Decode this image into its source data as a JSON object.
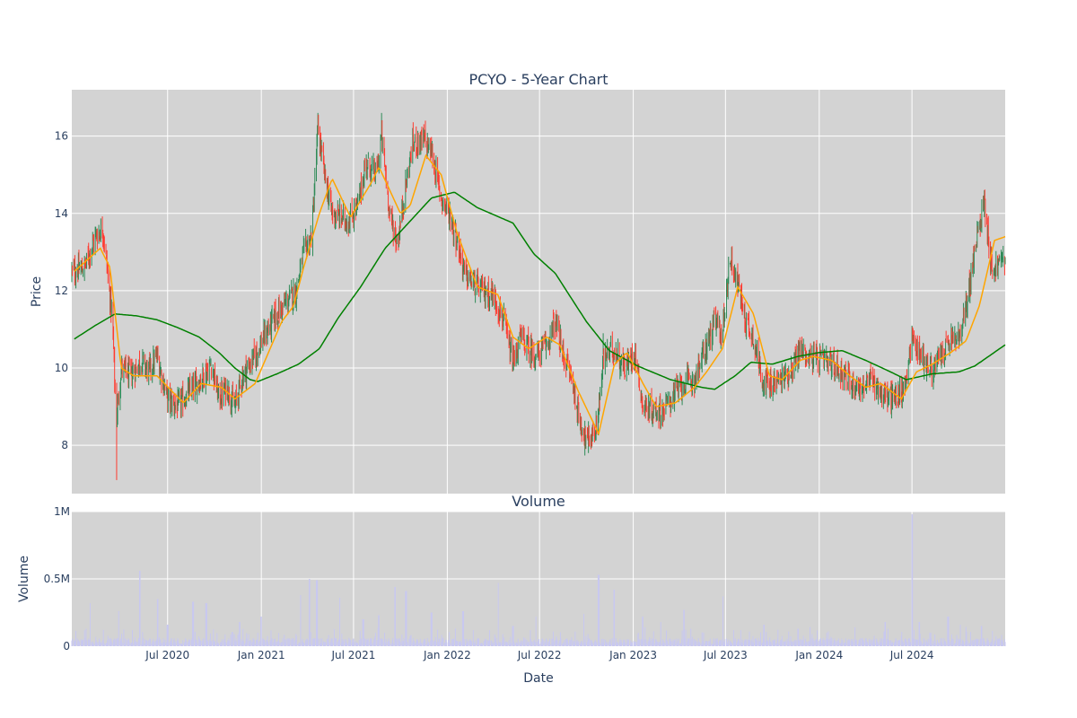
{
  "title": "PCYO - 5-Year Chart",
  "volume_title": "Volume",
  "colors": {
    "plot_bg": "#d3d3d3",
    "grid": "#ffffff",
    "candle_up": "#2e8b57",
    "candle_down": "#ff3b30",
    "ma_short": "#ffa500",
    "ma_long": "#008000",
    "volume_bar": "#c8c8f0",
    "text": "#2a3f5f"
  },
  "chart_data": [
    {
      "type": "candlestick",
      "ylabel": "Price",
      "ylim": [
        6.75,
        17.2
      ],
      "yticks": [
        8,
        10,
        12,
        14,
        16
      ],
      "grid": true,
      "xrange": [
        "2019-12-26",
        "2024-12-31"
      ],
      "series_anchors": {
        "close": [
          [
            "2019-12-31",
            12.5
          ],
          [
            "2020-01-20",
            12.6
          ],
          [
            "2020-02-10",
            13.4
          ],
          [
            "2020-02-25",
            13.6
          ],
          [
            "2020-03-05",
            12.5
          ],
          [
            "2020-03-15",
            11.2
          ],
          [
            "2020-03-22",
            8.6
          ],
          [
            "2020-04-01",
            10.0
          ],
          [
            "2020-04-20",
            9.8
          ],
          [
            "2020-05-10",
            10.2
          ],
          [
            "2020-05-25",
            9.9
          ],
          [
            "2020-06-10",
            10.3
          ],
          [
            "2020-07-01",
            9.2
          ],
          [
            "2020-07-20",
            9.0
          ],
          [
            "2020-08-15",
            9.4
          ],
          [
            "2020-09-10",
            9.8
          ],
          [
            "2020-09-25",
            10.1
          ],
          [
            "2020-10-10",
            9.2
          ],
          [
            "2020-10-25",
            9.5
          ],
          [
            "2020-11-10",
            9.0
          ],
          [
            "2020-11-25",
            9.8
          ],
          [
            "2020-12-15",
            10.2
          ],
          [
            "2021-01-10",
            10.9
          ],
          [
            "2021-02-01",
            11.4
          ],
          [
            "2021-02-20",
            11.7
          ],
          [
            "2021-03-10",
            12.0
          ],
          [
            "2021-03-25",
            13.0
          ],
          [
            "2021-04-10",
            13.4
          ],
          [
            "2021-04-22",
            16.2
          ],
          [
            "2021-05-05",
            15.0
          ],
          [
            "2021-05-20",
            14.0
          ],
          [
            "2021-06-05",
            13.9
          ],
          [
            "2021-06-20",
            13.8
          ],
          [
            "2021-07-10",
            14.2
          ],
          [
            "2021-07-25",
            15.3
          ],
          [
            "2021-08-15",
            15.0
          ],
          [
            "2021-08-25",
            16.0
          ],
          [
            "2021-09-10",
            14.0
          ],
          [
            "2021-09-25",
            13.2
          ],
          [
            "2021-10-10",
            14.6
          ],
          [
            "2021-10-25",
            15.8
          ],
          [
            "2021-11-15",
            15.9
          ],
          [
            "2021-12-01",
            15.6
          ],
          [
            "2021-12-20",
            14.4
          ],
          [
            "2022-01-05",
            14.0
          ],
          [
            "2022-01-20",
            13.3
          ],
          [
            "2022-02-05",
            12.4
          ],
          [
            "2022-02-20",
            12.2
          ],
          [
            "2022-03-10",
            12.0
          ],
          [
            "2022-04-01",
            11.9
          ],
          [
            "2022-04-20",
            11.3
          ],
          [
            "2022-05-10",
            10.1
          ],
          [
            "2022-05-25",
            10.8
          ],
          [
            "2022-06-10",
            10.5
          ],
          [
            "2022-06-25",
            10.3
          ],
          [
            "2022-07-15",
            10.6
          ],
          [
            "2022-08-01",
            11.2
          ],
          [
            "2022-08-15",
            10.4
          ],
          [
            "2022-09-01",
            9.8
          ],
          [
            "2022-09-15",
            8.8
          ],
          [
            "2022-10-01",
            8.1
          ],
          [
            "2022-10-20",
            8.4
          ],
          [
            "2022-11-05",
            10.3
          ],
          [
            "2022-11-25",
            10.5
          ],
          [
            "2022-12-15",
            10.0
          ],
          [
            "2023-01-05",
            10.4
          ],
          [
            "2023-01-20",
            9.0
          ],
          [
            "2023-02-10",
            8.9
          ],
          [
            "2023-03-01",
            8.9
          ],
          [
            "2023-03-20",
            9.3
          ],
          [
            "2023-04-10",
            9.6
          ],
          [
            "2023-05-01",
            9.7
          ],
          [
            "2023-05-20",
            10.4
          ],
          [
            "2023-06-10",
            11.2
          ],
          [
            "2023-06-25",
            10.9
          ],
          [
            "2023-07-10",
            12.9
          ],
          [
            "2023-07-25",
            12.2
          ],
          [
            "2023-08-10",
            11.2
          ],
          [
            "2023-08-25",
            10.8
          ],
          [
            "2023-09-10",
            9.8
          ],
          [
            "2023-09-25",
            9.5
          ],
          [
            "2023-10-15",
            9.7
          ],
          [
            "2023-11-05",
            9.9
          ],
          [
            "2023-11-25",
            10.5
          ],
          [
            "2023-12-10",
            10.3
          ],
          [
            "2024-01-05",
            10.2
          ],
          [
            "2024-01-25",
            10.1
          ],
          [
            "2024-02-15",
            9.9
          ],
          [
            "2024-03-05",
            9.6
          ],
          [
            "2024-03-25",
            9.5
          ],
          [
            "2024-04-15",
            9.7
          ],
          [
            "2024-05-05",
            9.3
          ],
          [
            "2024-05-25",
            9.2
          ],
          [
            "2024-06-15",
            9.4
          ],
          [
            "2024-07-01",
            10.8
          ],
          [
            "2024-07-20",
            10.3
          ],
          [
            "2024-08-10",
            9.9
          ],
          [
            "2024-08-25",
            10.3
          ],
          [
            "2024-09-15",
            10.7
          ],
          [
            "2024-10-05",
            10.8
          ],
          [
            "2024-10-20",
            12.0
          ],
          [
            "2024-11-05",
            13.3
          ],
          [
            "2024-11-20",
            14.4
          ],
          [
            "2024-12-05",
            12.5
          ],
          [
            "2024-12-31",
            12.9
          ]
        ],
        "ma_short": [
          [
            "2019-12-31",
            12.5
          ],
          [
            "2020-02-20",
            13.1
          ],
          [
            "2020-03-10",
            12.6
          ],
          [
            "2020-04-01",
            10.0
          ],
          [
            "2020-04-25",
            9.8
          ],
          [
            "2020-06-10",
            9.8
          ],
          [
            "2020-08-01",
            9.1
          ],
          [
            "2020-09-05",
            9.6
          ],
          [
            "2020-10-15",
            9.5
          ],
          [
            "2020-11-10",
            9.2
          ],
          [
            "2020-12-20",
            9.6
          ],
          [
            "2021-02-10",
            11.2
          ],
          [
            "2021-03-05",
            11.6
          ],
          [
            "2021-03-25",
            12.6
          ],
          [
            "2021-04-25",
            14.0
          ],
          [
            "2021-05-20",
            14.9
          ],
          [
            "2021-06-25",
            13.9
          ],
          [
            "2021-08-05",
            14.8
          ],
          [
            "2021-08-20",
            15.2
          ],
          [
            "2021-10-01",
            14.0
          ],
          [
            "2021-10-20",
            14.2
          ],
          [
            "2021-11-20",
            15.5
          ],
          [
            "2021-12-20",
            15.0
          ],
          [
            "2022-01-20",
            13.5
          ],
          [
            "2022-03-01",
            12.1
          ],
          [
            "2022-04-10",
            11.9
          ],
          [
            "2022-05-10",
            10.8
          ],
          [
            "2022-06-10",
            10.5
          ],
          [
            "2022-07-15",
            10.8
          ],
          [
            "2022-08-10",
            10.6
          ],
          [
            "2022-09-15",
            9.4
          ],
          [
            "2022-10-25",
            8.3
          ],
          [
            "2022-11-25",
            10.1
          ],
          [
            "2022-12-20",
            10.4
          ],
          [
            "2023-01-20",
            9.6
          ],
          [
            "2023-02-15",
            9.0
          ],
          [
            "2023-03-25",
            9.1
          ],
          [
            "2023-05-01",
            9.5
          ],
          [
            "2023-05-25",
            9.9
          ],
          [
            "2023-06-25",
            10.5
          ],
          [
            "2023-07-25",
            12.1
          ],
          [
            "2023-08-25",
            11.4
          ],
          [
            "2023-09-25",
            9.8
          ],
          [
            "2023-10-20",
            9.7
          ],
          [
            "2023-11-25",
            10.2
          ],
          [
            "2023-12-20",
            10.3
          ],
          [
            "2024-01-25",
            10.2
          ],
          [
            "2024-03-01",
            9.8
          ],
          [
            "2024-04-01",
            9.5
          ],
          [
            "2024-05-01",
            9.6
          ],
          [
            "2024-06-10",
            9.2
          ],
          [
            "2024-07-10",
            9.9
          ],
          [
            "2024-08-10",
            10.1
          ],
          [
            "2024-09-15",
            10.4
          ],
          [
            "2024-10-15",
            10.7
          ],
          [
            "2024-11-10",
            11.6
          ],
          [
            "2024-12-10",
            13.3
          ],
          [
            "2024-12-31",
            13.4
          ]
        ],
        "ma_long": [
          [
            "2019-12-31",
            10.75
          ],
          [
            "2020-02-10",
            11.1
          ],
          [
            "2020-03-20",
            11.4
          ],
          [
            "2020-05-01",
            11.35
          ],
          [
            "2020-06-10",
            11.25
          ],
          [
            "2020-07-20",
            11.05
          ],
          [
            "2020-09-01",
            10.8
          ],
          [
            "2020-10-10",
            10.4
          ],
          [
            "2020-11-10",
            10.0
          ],
          [
            "2020-12-10",
            9.7
          ],
          [
            "2020-12-25",
            9.65
          ],
          [
            "2021-02-01",
            9.85
          ],
          [
            "2021-03-15",
            10.1
          ],
          [
            "2021-04-25",
            10.5
          ],
          [
            "2021-06-01",
            11.3
          ],
          [
            "2021-07-15",
            12.1
          ],
          [
            "2021-09-01",
            13.1
          ],
          [
            "2021-10-20",
            13.8
          ],
          [
            "2021-12-01",
            14.4
          ],
          [
            "2022-01-15",
            14.55
          ],
          [
            "2022-03-01",
            14.15
          ],
          [
            "2022-05-10",
            13.75
          ],
          [
            "2022-06-20",
            12.95
          ],
          [
            "2022-08-01",
            12.45
          ],
          [
            "2022-10-01",
            11.2
          ],
          [
            "2022-11-15",
            10.45
          ],
          [
            "2023-01-10",
            10.05
          ],
          [
            "2023-03-15",
            9.7
          ],
          [
            "2023-05-15",
            9.5
          ],
          [
            "2023-06-10",
            9.45
          ],
          [
            "2023-07-20",
            9.8
          ],
          [
            "2023-08-20",
            10.15
          ],
          [
            "2023-10-01",
            10.1
          ],
          [
            "2023-11-20",
            10.3
          ],
          [
            "2024-01-01",
            10.4
          ],
          [
            "2024-02-15",
            10.45
          ],
          [
            "2024-04-01",
            10.2
          ],
          [
            "2024-05-20",
            9.9
          ],
          [
            "2024-06-20",
            9.7
          ],
          [
            "2024-08-10",
            9.85
          ],
          [
            "2024-10-01",
            9.9
          ],
          [
            "2024-11-01",
            10.05
          ],
          [
            "2024-12-31",
            10.6
          ]
        ]
      },
      "lows_annotated": [
        [
          "2020-03-22",
          7.1
        ],
        [
          "2022-10-05",
          7.8
        ],
        [
          "2022-11-03",
          10.9
        ]
      ],
      "highs_annotated": [
        [
          "2021-04-22",
          16.6
        ],
        [
          "2021-08-25",
          16.6
        ],
        [
          "2021-11-20",
          16.4
        ],
        [
          "2024-11-20",
          14.6
        ]
      ]
    },
    {
      "type": "bar",
      "ylabel": "Volume",
      "ylim": [
        0,
        1000000
      ],
      "yticks": [
        0,
        500000,
        1000000
      ],
      "ytick_labels": [
        "0",
        "0.5M",
        "1M"
      ],
      "xlabel": "Date",
      "grid": true,
      "spikes": [
        [
          "2020-02-01",
          320000
        ],
        [
          "2020-03-28",
          260000
        ],
        [
          "2020-05-08",
          560000
        ],
        [
          "2020-06-12",
          350000
        ],
        [
          "2020-07-01",
          160000
        ],
        [
          "2020-08-20",
          330000
        ],
        [
          "2020-09-15",
          320000
        ],
        [
          "2020-11-20",
          180000
        ],
        [
          "2021-01-01",
          220000
        ],
        [
          "2021-03-20",
          380000
        ],
        [
          "2021-04-05",
          500000
        ],
        [
          "2021-04-20",
          490000
        ],
        [
          "2021-06-05",
          360000
        ],
        [
          "2021-07-20",
          200000
        ],
        [
          "2021-08-20",
          230000
        ],
        [
          "2021-09-20",
          440000
        ],
        [
          "2021-10-12",
          410000
        ],
        [
          "2021-12-01",
          250000
        ],
        [
          "2022-02-01",
          260000
        ],
        [
          "2022-04-10",
          470000
        ],
        [
          "2022-05-10",
          150000
        ],
        [
          "2022-06-25",
          220000
        ],
        [
          "2022-09-25",
          240000
        ],
        [
          "2022-10-25",
          530000
        ],
        [
          "2022-11-25",
          420000
        ],
        [
          "2023-01-20",
          220000
        ],
        [
          "2023-02-25",
          180000
        ],
        [
          "2023-04-10",
          270000
        ],
        [
          "2023-06-25",
          370000
        ],
        [
          "2023-09-15",
          160000
        ],
        [
          "2023-11-20",
          130000
        ],
        [
          "2024-01-20",
          110000
        ],
        [
          "2024-03-10",
          140000
        ],
        [
          "2024-05-10",
          180000
        ],
        [
          "2024-07-01",
          980000
        ],
        [
          "2024-07-15",
          180000
        ],
        [
          "2024-09-10",
          220000
        ],
        [
          "2024-10-05",
          160000
        ],
        [
          "2024-11-15",
          150000
        ]
      ]
    }
  ],
  "xticks": [
    [
      "2020-07-01",
      "Jul 2020"
    ],
    [
      "2021-01-01",
      "Jan 2021"
    ],
    [
      "2021-07-01",
      "Jul 2021"
    ],
    [
      "2022-01-01",
      "Jan 2022"
    ],
    [
      "2022-07-01",
      "Jul 2022"
    ],
    [
      "2023-01-01",
      "Jan 2023"
    ],
    [
      "2023-07-01",
      "Jul 2023"
    ],
    [
      "2024-01-01",
      "Jan 2024"
    ],
    [
      "2024-07-01",
      "Jul 2024"
    ]
  ]
}
